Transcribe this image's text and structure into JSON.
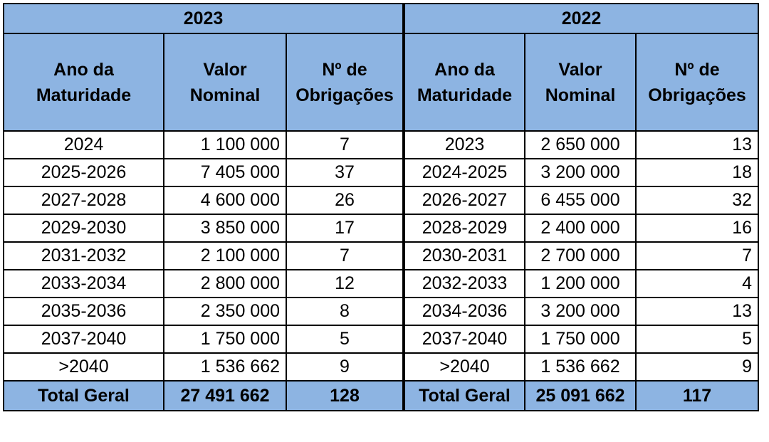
{
  "tables": [
    {
      "year": "2023",
      "headers": [
        "Ano da Maturidade",
        "Valor Nominal",
        "Nº de Obrigações"
      ],
      "rows": [
        [
          "2024",
          "1 100 000",
          "7"
        ],
        [
          "2025-2026",
          "7 405 000",
          "37"
        ],
        [
          "2027-2028",
          "4 600 000",
          "26"
        ],
        [
          "2029-2030",
          "3 850 000",
          "17"
        ],
        [
          "2031-2032",
          "2 100 000",
          "7"
        ],
        [
          "2033-2034",
          "2 800 000",
          "12"
        ],
        [
          "2035-2036",
          "2 350 000",
          "8"
        ],
        [
          "2037-2040",
          "1 750 000",
          "5"
        ],
        [
          ">2040",
          "1 536 662",
          "9"
        ]
      ],
      "total": [
        "Total Geral",
        "27 491 662",
        "128"
      ]
    },
    {
      "year": "2022",
      "headers": [
        "Ano da Maturidade",
        "Valor Nominal",
        "Nº de Obrigações"
      ],
      "rows": [
        [
          "2023",
          "2 650 000",
          "13"
        ],
        [
          "2024-2025",
          "3 200 000",
          "18"
        ],
        [
          "2026-2027",
          "6 455 000",
          "32"
        ],
        [
          "2028-2029",
          "2 400 000",
          "16"
        ],
        [
          "2030-2031",
          "2 700 000",
          "7"
        ],
        [
          "2032-2033",
          "1 200 000",
          "4"
        ],
        [
          "2034-2036",
          "3 200 000",
          "13"
        ],
        [
          "2037-2040",
          "1 750 000",
          "5"
        ],
        [
          ">2040",
          "1 536 662",
          "9"
        ]
      ],
      "total": [
        "Total Geral",
        "25 091 662",
        "117"
      ]
    }
  ]
}
